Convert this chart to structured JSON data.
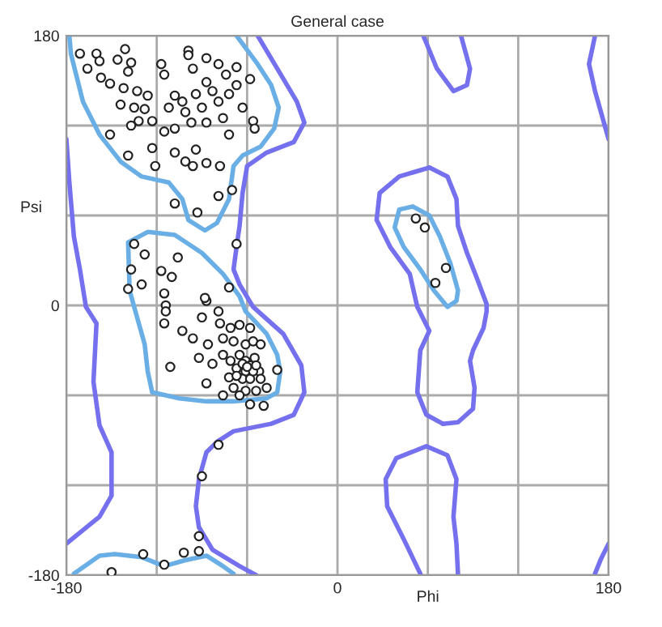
{
  "chart_data": {
    "type": "scatter",
    "title": "General case",
    "xlabel": "Phi",
    "ylabel": "Psi",
    "xlim": [
      -180,
      180
    ],
    "ylim": [
      -180,
      180
    ],
    "xticks": [
      -180,
      {
        "value": -120,
        "label": null
      },
      {
        "value": -60,
        "label": null
      },
      0,
      {
        "value": 60,
        "label": null
      },
      {
        "value": 120,
        "label": null
      },
      180
    ],
    "yticks": [
      -180,
      {
        "value": -120,
        "label": null
      },
      {
        "value": -60,
        "label": null
      },
      0,
      {
        "value": 60,
        "label": null
      },
      {
        "value": 120,
        "label": null
      },
      180
    ],
    "grid": true,
    "series": [
      {
        "type": "line",
        "color": "#6aaee6",
        "x": [
          -178,
          -177,
          -169,
          -158,
          -144,
          -130,
          -112,
          -103,
          -99,
          -88,
          -80,
          -72,
          -69,
          -63,
          -51,
          -42,
          -39,
          -44,
          -53,
          -67
        ],
        "values": [
          180,
          168,
          136,
          114,
          96,
          86,
          82,
          71,
          57,
          50,
          55,
          71,
          93,
          100,
          106,
          118,
          132,
          147,
          161,
          180
        ]
      },
      {
        "type": "line",
        "color": "#6aaee6",
        "x": [
          -175,
          -158,
          -148,
          -130,
          -115,
          -101,
          -87,
          -76,
          -69
        ],
        "values": [
          -179,
          -167,
          -166,
          -168,
          -174,
          -170,
          -167,
          -174,
          -179
        ]
      },
      {
        "type": "line",
        "color": "#6aaee6",
        "x": [
          -139,
          -126,
          -108,
          -90,
          -76,
          -65,
          -61,
          -47,
          -40,
          -38,
          null,
          -38,
          -40,
          -47,
          -69,
          -87,
          -105,
          -123,
          -126,
          -128,
          -135,
          -138,
          -139
        ],
        "values": [
          42,
          49,
          47,
          35,
          21,
          6,
          -4,
          -19,
          -33,
          -44,
          null,
          -44,
          -58,
          -62,
          -64,
          -64,
          -62,
          -58,
          -44,
          -26,
          -1,
          10,
          42
        ]
      },
      {
        "type": "line",
        "color": "#6aaee6",
        "x": [
          38,
          41,
          50,
          61,
          68,
          75,
          80,
          null,
          80,
          79,
          73,
          64,
          55,
          44,
          38
        ],
        "values": [
          52,
          64,
          66,
          60,
          46,
          28,
          10,
          null,
          10,
          3,
          -1,
          10,
          24,
          39,
          52
        ]
      },
      {
        "type": "line",
        "color": "#7470ee",
        "x": [
          -53,
          -40,
          -27,
          -22,
          -29,
          -47,
          -60,
          -63,
          -65,
          -67,
          -69,
          -65,
          -56,
          -36,
          -24,
          -22,
          -29,
          -44,
          -69,
          -80,
          -87,
          -92,
          -94,
          -92,
          -83,
          -65,
          -54
        ],
        "values": [
          180,
          158,
          136,
          122,
          109,
          102,
          93,
          75,
          53,
          39,
          24,
          14,
          -1,
          -19,
          -40,
          -58,
          -73,
          -79,
          -84,
          -91,
          -98,
          -116,
          -134,
          -148,
          -163,
          -174,
          -180
        ]
      },
      {
        "type": "line",
        "color": "#7470ee",
        "x": [
          -180,
          -178,
          -175,
          -171,
          -167,
          -160,
          -162,
          -158,
          -150,
          -150,
          -158,
          -180
        ],
        "values": [
          111,
          82,
          46,
          24,
          -1,
          -12,
          -51,
          -80,
          -98,
          -127,
          -141,
          -159
        ]
      },
      {
        "type": "line",
        "color": "#7470ee",
        "x": [
          57,
          66,
          77,
          86,
          88,
          82
        ],
        "values": [
          180,
          158,
          143,
          147,
          158,
          180
        ]
      },
      {
        "type": "line",
        "color": "#7470ee",
        "x": [
          55,
          44,
          33,
          32,
          39,
          59,
          73,
          79,
          77,
          79,
          80
        ],
        "values": [
          -179,
          -156,
          -134,
          -116,
          -102,
          -94,
          -100,
          -116,
          -141,
          -159,
          -179
        ]
      },
      {
        "type": "line",
        "color": "#7470ee",
        "x": [
          61,
          73,
          79,
          80,
          86,
          93,
          99,
          99,
          97,
          90,
          88,
          91,
          90,
          80,
          70
        ],
        "values": [
          92,
          86,
          71,
          53,
          35,
          17,
          1,
          -4,
          -15,
          -30,
          -37,
          -55,
          -69,
          -78,
          -79
        ]
      },
      {
        "type": "line",
        "color": "#7470ee",
        "x": [
          70,
          59,
          53,
          55,
          61,
          53,
          48,
          35,
          26,
          28,
          41,
          61
        ],
        "values": [
          -79,
          -73,
          -58,
          -30,
          -17,
          -1,
          21,
          39,
          57,
          75,
          86,
          92
        ]
      },
      {
        "type": "line",
        "color": "#7470ee",
        "x": [
          171,
          167,
          171,
          180
        ],
        "values": [
          180,
          161,
          143,
          111
        ]
      },
      {
        "type": "line",
        "color": "#7470ee",
        "x": [
          171,
          175,
          180
        ],
        "values": [
          -179,
          -169,
          -159
        ]
      },
      {
        "type": "scatter",
        "color": "#222222",
        "marker": "circle",
        "x": [
          -171,
          -160,
          -158,
          -166,
          -146,
          -141,
          -137,
          -139,
          -157,
          -151,
          -142,
          -133,
          -126,
          -144,
          -135,
          -128,
          -123,
          -132,
          -137,
          -151,
          -139,
          -123,
          -121,
          -117,
          -115,
          -99,
          -96,
          -99,
          -87,
          -79,
          -74,
          -67,
          -58,
          -67,
          -87,
          -94,
          -103,
          -108,
          -112,
          -101,
          -90,
          -79,
          -72,
          -83,
          -76,
          -87,
          -97,
          -108,
          -115,
          -108,
          -101,
          -96,
          -87,
          -78,
          -94,
          -72,
          -63,
          -56,
          -55,
          -79,
          -70,
          -108,
          -93,
          -67,
          -135,
          -128,
          -137,
          -117,
          -106,
          -110,
          -130,
          -139,
          -115,
          -87,
          -72,
          -114,
          -88,
          -114,
          -115,
          -103,
          -96,
          -90,
          -79,
          -78,
          -71,
          -65,
          -58,
          -86,
          -76,
          -69,
          -61,
          -56,
          -51,
          -92,
          -83,
          -76,
          -71,
          -65,
          -61,
          -55,
          -67,
          -61,
          -58,
          -52,
          -72,
          -63,
          -58,
          -51,
          -47,
          -69,
          -61,
          -54,
          -76,
          -65,
          -40,
          -111,
          -87,
          -58,
          -49,
          -63,
          -56,
          -60,
          -67,
          -54,
          -79,
          -90,
          -92,
          -102,
          -92,
          -129,
          -115,
          -150,
          52,
          58,
          72,
          65
        ],
        "values": [
          168,
          168,
          163,
          158,
          164,
          171,
          162,
          156,
          152,
          148,
          145,
          143,
          140,
          134,
          132,
          131,
          123,
          123,
          120,
          114,
          100,
          105,
          93,
          161,
          154,
          170,
          158,
          167,
          165,
          161,
          154,
          159,
          151,
          147,
          149,
          141,
          136,
          140,
          132,
          129,
          132,
          136,
          141,
          143,
          125,
          122,
          122,
          118,
          116,
          102,
          96,
          93,
          95,
          93,
          104,
          114,
          132,
          123,
          118,
          73,
          77,
          68,
          62,
          41,
          41,
          34,
          24,
          23,
          32,
          19,
          14,
          11,
          8,
          3,
          12,
          0,
          5,
          -4,
          -12,
          -17,
          -22,
          -8,
          -4,
          -12,
          -15,
          -13,
          -15,
          -26,
          -22,
          -24,
          -26,
          -24,
          -26,
          -35,
          -39,
          -33,
          -37,
          -33,
          -37,
          -35,
          -42,
          -44,
          -40,
          -44,
          -48,
          -49,
          -49,
          -49,
          -55,
          -55,
          -57,
          -57,
          -60,
          -60,
          -43,
          -41,
          -52,
          -66,
          -67,
          -39,
          -44,
          -41,
          -47,
          -40,
          -93,
          -114,
          -154,
          -165,
          -164,
          -166,
          -173,
          -178,
          58,
          52,
          25,
          15
        ]
      }
    ]
  }
}
